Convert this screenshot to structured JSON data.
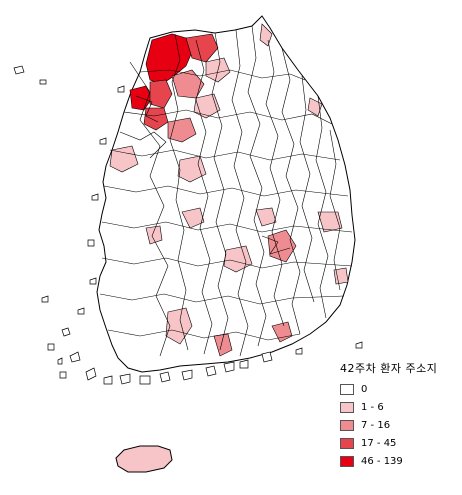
{
  "legend": {
    "title": "42주차 환자 주소지",
    "classes": [
      {
        "label": "0",
        "color": "#ffffff"
      },
      {
        "label": "1 - 6",
        "color": "#f7c4c8"
      },
      {
        "label": "7 - 16",
        "color": "#ee8c91"
      },
      {
        "label": "17 - 45",
        "color": "#e6454d"
      },
      {
        "label": "46 - 139",
        "color": "#e60012"
      }
    ]
  },
  "map": {
    "outline_color": "#000000",
    "background": "#ffffff"
  }
}
